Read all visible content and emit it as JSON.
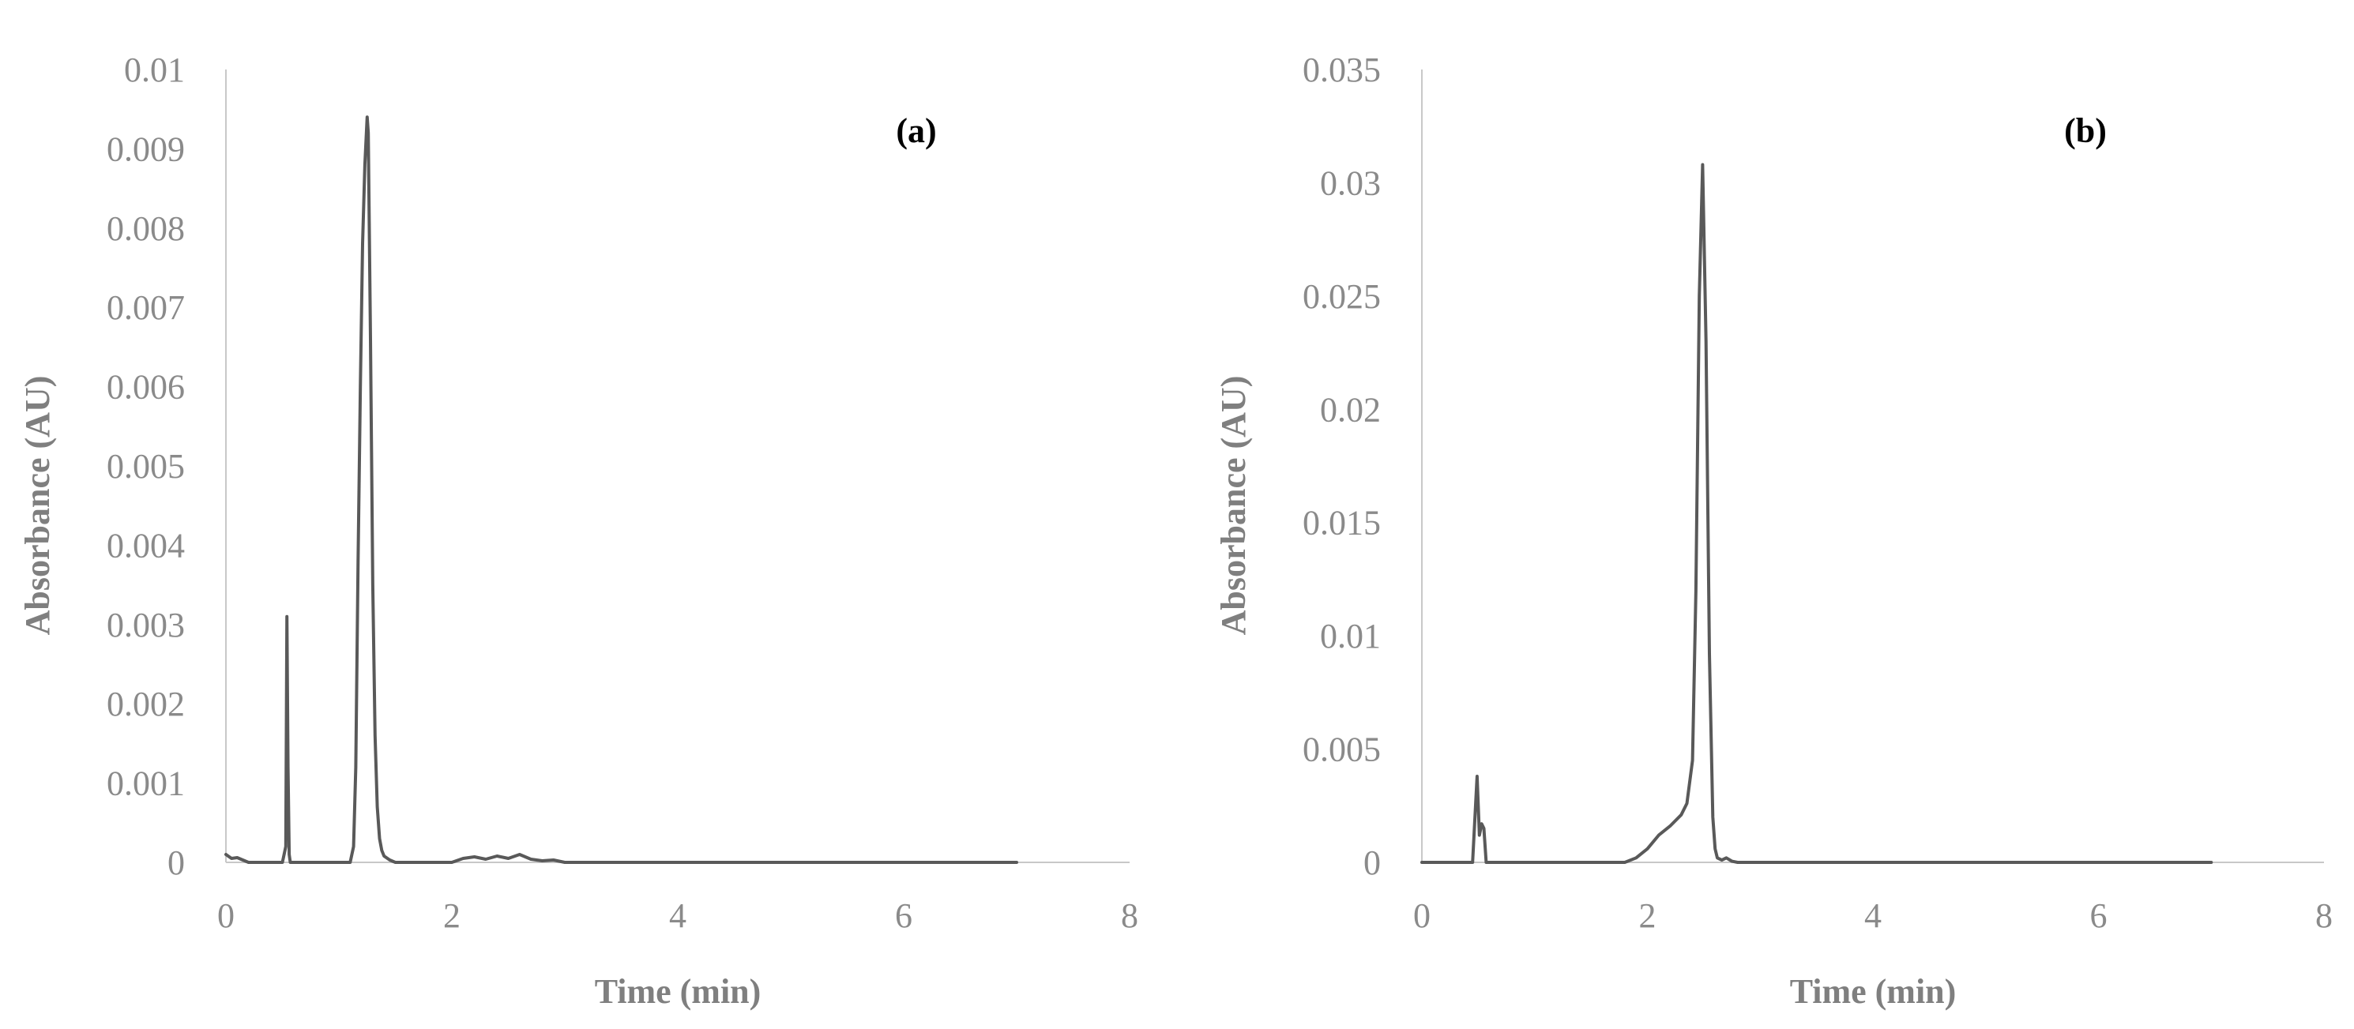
{
  "chart_data": [
    {
      "type": "line",
      "panel_label": "(a)",
      "xlabel": "Time (min)",
      "ylabel": "Absorbance (AU)",
      "xlim": [
        0,
        8
      ],
      "ylim": [
        0,
        0.01
      ],
      "x_ticks": [
        "0",
        "2",
        "4",
        "6",
        "8"
      ],
      "y_ticks": [
        "0",
        "0.001",
        "0.002",
        "0.003",
        "0.004",
        "0.005",
        "0.006",
        "0.007",
        "0.008",
        "0.009",
        "0.01"
      ],
      "grid": false,
      "legend": "none",
      "line_color": "#595959",
      "series": [
        {
          "x": [
            0,
            0.05,
            0.1,
            0.15,
            0.2,
            0.3,
            0.4,
            0.5,
            0.53,
            0.54,
            0.55,
            0.56,
            0.57,
            0.6,
            0.8,
            1.05,
            1.1,
            1.13,
            1.15,
            1.17,
            1.19,
            1.21,
            1.23,
            1.25,
            1.26,
            1.28,
            1.3,
            1.32,
            1.34,
            1.36,
            1.38,
            1.4,
            1.45,
            1.5,
            1.6,
            2.0,
            2.1,
            2.2,
            2.3,
            2.4,
            2.5,
            2.6,
            2.7,
            2.8,
            2.9,
            3.0,
            3.5,
            5.0,
            7.0
          ],
          "y": [
            0.0001,
            5e-05,
            6e-05,
            3e-05,
            0.0,
            0.0,
            0.0,
            0.0,
            0.0002,
            0.0031,
            0.0012,
            0.0001,
            0.0,
            0.0,
            0.0,
            0.0,
            0.0,
            0.0002,
            0.0012,
            0.0038,
            0.006,
            0.0078,
            0.0088,
            0.0094,
            0.0092,
            0.0066,
            0.0035,
            0.0016,
            0.0007,
            0.0003,
            0.00015,
            8e-05,
            3e-05,
            0.0,
            0.0,
            0.0,
            5e-05,
            7e-05,
            4e-05,
            8e-05,
            5e-05,
            0.0001,
            4e-05,
            2e-05,
            3e-05,
            0.0,
            0.0,
            0.0,
            0.0
          ]
        }
      ]
    },
    {
      "type": "line",
      "panel_label": "(b)",
      "xlabel": "Time (min)",
      "ylabel": "Absorbance (AU)",
      "xlim": [
        0,
        8
      ],
      "ylim": [
        0,
        0.035
      ],
      "x_ticks": [
        "0",
        "2",
        "4",
        "6",
        "8"
      ],
      "y_ticks": [
        "0",
        "0.005",
        "0.01",
        "0.015",
        "0.02",
        "0.025",
        "0.03",
        "0.035"
      ],
      "grid": false,
      "legend": "none",
      "line_color": "#595959",
      "series": [
        {
          "x": [
            0,
            0.3,
            0.45,
            0.49,
            0.51,
            0.53,
            0.55,
            0.57,
            0.6,
            0.8,
            1.2,
            1.8,
            1.9,
            2.0,
            2.1,
            2.2,
            2.3,
            2.35,
            2.4,
            2.43,
            2.46,
            2.49,
            2.52,
            2.55,
            2.58,
            2.6,
            2.62,
            2.66,
            2.7,
            2.75,
            2.8,
            3.0,
            4.0,
            5.5,
            7.0
          ],
          "y": [
            0.0,
            0.0,
            0.0,
            0.0038,
            0.0012,
            0.0017,
            0.0015,
            0.0,
            0.0,
            0.0,
            0.0,
            0.0,
            0.0002,
            0.0006,
            0.0012,
            0.0016,
            0.0021,
            0.0026,
            0.0045,
            0.012,
            0.025,
            0.0308,
            0.023,
            0.0092,
            0.002,
            0.0006,
            0.0002,
            0.0001,
            0.0002,
            5e-05,
            0.0,
            0.0,
            0.0,
            0.0,
            0.0
          ]
        }
      ]
    }
  ]
}
